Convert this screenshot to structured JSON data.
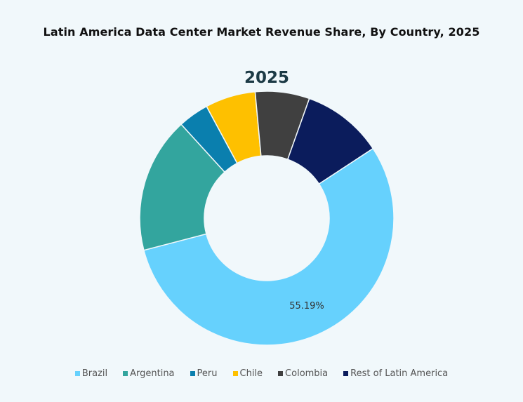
{
  "chart_data": {
    "type": "pie",
    "donut": true,
    "title": "Latin America Data Center Market Revenue Share, By Country, 2025",
    "subtitle": "2025",
    "categories": [
      "Brazil",
      "Argentina",
      "Peru",
      "Chile",
      "Colombia",
      "Rest of Latin America"
    ],
    "values": [
      55.19,
      17.3,
      3.9,
      6.4,
      6.9,
      10.31
    ],
    "data_labels": [
      "55.19%",
      "",
      "",
      "",
      "",
      ""
    ],
    "colors": [
      "#66d1fd",
      "#33a59e",
      "#0a7fae",
      "#fec000",
      "#404040",
      "#0b1c5c"
    ],
    "legend_position": "bottom"
  }
}
